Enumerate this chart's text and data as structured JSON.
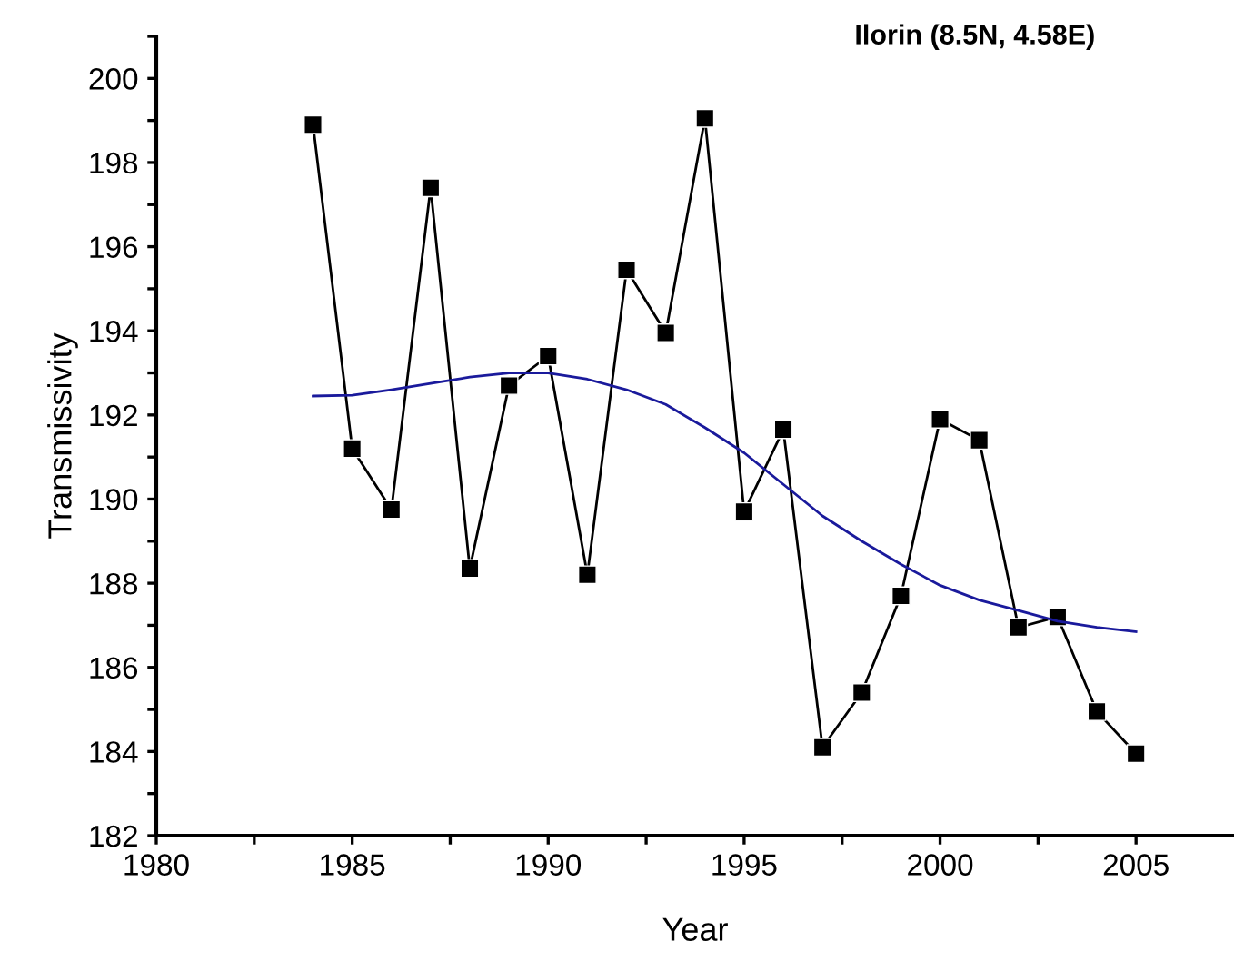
{
  "chart_data": {
    "type": "line",
    "title": "Ilorin (8.5N, 4.58E)",
    "xlabel": "Year",
    "ylabel": "Transmissivity",
    "xlim": [
      1980,
      2007.5
    ],
    "ylim": [
      182,
      201
    ],
    "xticks": [
      1980,
      {
        "value": 1982.5,
        "label": null
      },
      1985,
      {
        "value": 1987.5,
        "label": null
      },
      1990,
      {
        "value": 1992.5,
        "label": null
      },
      1995,
      {
        "value": 1997.5,
        "label": null
      },
      2000,
      {
        "value": 2002.5,
        "label": null
      },
      2005
    ],
    "yticks": [
      182,
      {
        "value": 183,
        "label": null
      },
      184,
      {
        "value": 185,
        "label": null
      },
      186,
      {
        "value": 187,
        "label": null
      },
      188,
      {
        "value": 189,
        "label": null
      },
      190,
      {
        "value": 191,
        "label": null
      },
      192,
      {
        "value": 193,
        "label": null
      },
      194,
      {
        "value": 195,
        "label": null
      },
      196,
      {
        "value": 197,
        "label": null
      },
      198,
      {
        "value": 199,
        "label": null
      },
      200,
      {
        "value": 201,
        "label": null
      }
    ],
    "grid": false,
    "legend": false,
    "series": [
      {
        "color": "#000000",
        "marker": "square",
        "line_style": "solid",
        "x": [
          1984,
          1985,
          1986,
          1987,
          1988,
          1989,
          1990,
          1991,
          1992,
          1993,
          1994,
          1995,
          1996,
          1997,
          1998,
          1999,
          2000,
          2001,
          2002,
          2003,
          2004,
          2005
        ],
        "values": [
          198.9,
          191.2,
          189.75,
          197.4,
          188.35,
          192.7,
          193.4,
          188.2,
          195.45,
          193.95,
          199.05,
          189.7,
          191.65,
          184.1,
          185.4,
          187.7,
          191.9,
          191.4,
          186.95,
          187.2,
          184.95,
          183.95
        ]
      },
      {
        "color": "#1a1a9c",
        "marker": "none",
        "line_style": "solid",
        "x": [
          1984,
          1985,
          1986,
          1987,
          1988,
          1989,
          1990,
          1991,
          1992,
          1993,
          1994,
          1995,
          1996,
          1997,
          1998,
          1999,
          2000,
          2001,
          2002,
          2003,
          2004,
          2005
        ],
        "values": [
          192.45,
          192.47,
          192.6,
          192.75,
          192.9,
          193.0,
          193.0,
          192.85,
          192.6,
          192.25,
          191.7,
          191.1,
          190.35,
          189.6,
          189.0,
          188.45,
          187.95,
          187.6,
          187.35,
          187.1,
          186.95,
          186.85
        ]
      }
    ]
  }
}
